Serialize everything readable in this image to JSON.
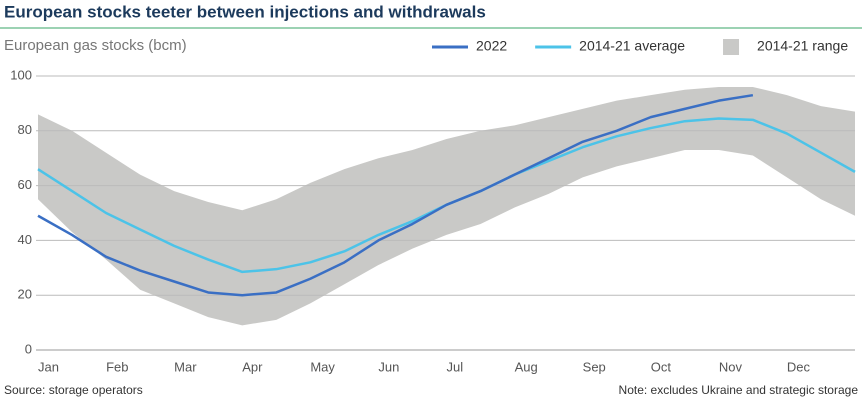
{
  "chart_data": {
    "type": "line",
    "title": "European stocks teeter between injections and withdrawals",
    "subtitle": "European gas stocks (bcm)",
    "source": "Source: storage operators",
    "note": "Note: excludes Ukraine and strategic storage",
    "categories": [
      "Jan",
      null,
      "Feb",
      null,
      "Mar",
      null,
      "Apr",
      null,
      "May",
      null,
      "Jun",
      null,
      "Jul",
      null,
      "Aug",
      null,
      "Sep",
      null,
      "Oct",
      null,
      "Nov",
      null,
      "Dec",
      null,
      null
    ],
    "series": [
      {
        "name": "2014-21 range",
        "color": "#c9c9c7",
        "high": [
          86,
          80,
          72,
          64,
          58,
          54,
          51,
          55,
          61,
          66,
          70,
          73,
          77,
          80,
          82,
          85,
          88,
          91,
          93,
          95,
          96,
          96,
          93,
          89,
          87
        ],
        "low": [
          55,
          43,
          33,
          22,
          17,
          12,
          9,
          11,
          17,
          24,
          31,
          37,
          42,
          46,
          52,
          57,
          63,
          67,
          70,
          73,
          73,
          71,
          63,
          55,
          49
        ]
      },
      {
        "name": "2014-21 average",
        "color": "#4cc3e8",
        "values": [
          66,
          58,
          50,
          44,
          38,
          33,
          28.5,
          29.5,
          32,
          36,
          42,
          47,
          53,
          58,
          64,
          69,
          74,
          78,
          81,
          83.5,
          84.5,
          84,
          79,
          72,
          65
        ]
      },
      {
        "name": "2022",
        "color": "#3a6fc4",
        "values": [
          49,
          42,
          34,
          29,
          25,
          21,
          20,
          21,
          26,
          32,
          40,
          46,
          53,
          58,
          64,
          70,
          76,
          80,
          85,
          88,
          91,
          93,
          null,
          null,
          null
        ]
      }
    ],
    "ylim": [
      0,
      100
    ],
    "yticks": [
      0,
      20,
      40,
      60,
      80,
      100
    ],
    "grid": true,
    "legend": "top-right"
  }
}
